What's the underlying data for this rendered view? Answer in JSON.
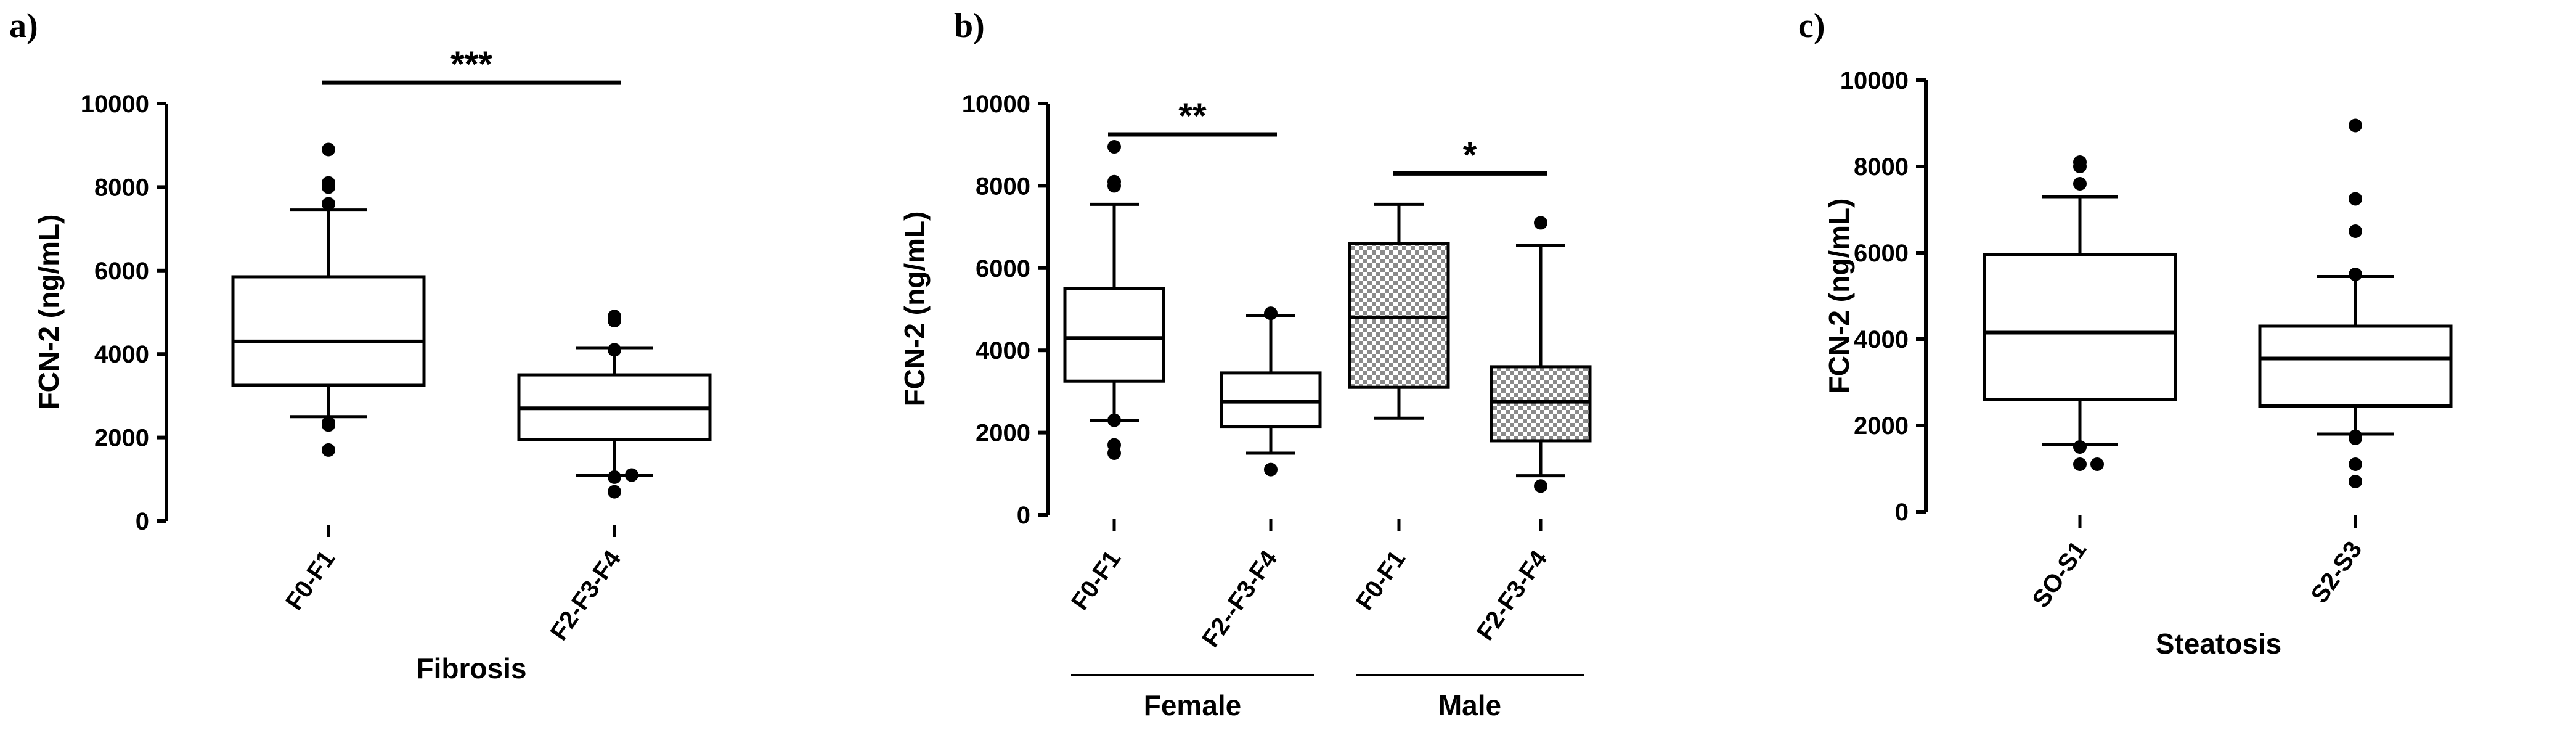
{
  "chart_data": [
    {
      "panel": "a)",
      "type": "box",
      "ylabel": "FCN-2 (ng/mL)",
      "xlabel": "Fibrosis",
      "ylim": [
        0,
        10000
      ],
      "yticks": [
        "0",
        "2000",
        "4000",
        "6000",
        "8000",
        "10000"
      ],
      "groups": [
        {
          "label": "F0-F1",
          "fill": "white",
          "q1": 3250,
          "median": 4300,
          "q3": 5850,
          "whisker_low": 2500,
          "whisker_high": 7450,
          "outliers": [
            1700,
            2300,
            2350,
            7600,
            8000,
            8100,
            8900
          ]
        },
        {
          "label": "F2-F3-F4",
          "fill": "white",
          "q1": 1950,
          "median": 2700,
          "q3": 3500,
          "whisker_low": 1100,
          "whisker_high": 4150,
          "outliers": [
            700,
            1050,
            1100,
            4100,
            4800,
            4900
          ]
        }
      ],
      "significance": [
        {
          "from": 0,
          "to": 1,
          "label": "***",
          "y": 10500
        }
      ]
    },
    {
      "panel": "b)",
      "type": "box",
      "ylabel": "FCN-2 (ng/mL)",
      "ylim": [
        0,
        10000
      ],
      "yticks": [
        "0",
        "2000",
        "4000",
        "6000",
        "8000",
        "10000"
      ],
      "groups": [
        {
          "label": "F0-F1",
          "fill": "white",
          "q1": 3250,
          "median": 4300,
          "q3": 5500,
          "whisker_low": 2300,
          "whisker_high": 7550,
          "outliers": [
            1500,
            1700,
            2300,
            8000,
            8100,
            8950
          ]
        },
        {
          "label": "F2--F3-F4",
          "fill": "white",
          "q1": 2150,
          "median": 2750,
          "q3": 3450,
          "whisker_low": 1500,
          "whisker_high": 4850,
          "outliers": [
            1100,
            4900
          ]
        },
        {
          "label": "F0-F1",
          "fill": "checkered",
          "q1": 3100,
          "median": 4800,
          "q3": 6600,
          "whisker_low": 2350,
          "whisker_high": 7550,
          "outliers": []
        },
        {
          "label": "F2-F3-F4",
          "fill": "checkered",
          "q1": 1800,
          "median": 2750,
          "q3": 3600,
          "whisker_low": 950,
          "whisker_high": 6550,
          "outliers": [
            700,
            7100
          ]
        }
      ],
      "group_labels": [
        {
          "label": "Female",
          "from": 0,
          "to": 1
        },
        {
          "label": "Male",
          "from": 2,
          "to": 3
        }
      ],
      "significance": [
        {
          "from": 0,
          "to": 1,
          "label": "**",
          "y": 9250
        },
        {
          "from": 2,
          "to": 3,
          "label": "*",
          "y": 8300
        }
      ]
    },
    {
      "panel": "c)",
      "type": "box",
      "ylabel": "FCN-2 (ng/mL)",
      "xlabel": "Steatosis",
      "ylim": [
        0,
        10000
      ],
      "yticks": [
        "0",
        "2000",
        "4000",
        "6000",
        "8000",
        "10000"
      ],
      "groups": [
        {
          "label": "SO-S1",
          "fill": "white",
          "q1": 2600,
          "median": 4150,
          "q3": 5950,
          "whisker_low": 1550,
          "whisker_high": 7300,
          "outliers": [
            1100,
            1100,
            1500,
            7600,
            8000,
            8100
          ]
        },
        {
          "label": "S2-S3",
          "fill": "white",
          "q1": 2450,
          "median": 3550,
          "q3": 4300,
          "whisker_low": 1800,
          "whisker_high": 5450,
          "outliers": [
            700,
            1100,
            1700,
            1750,
            5500,
            6500,
            7250,
            8950
          ]
        }
      ],
      "significance": []
    }
  ]
}
